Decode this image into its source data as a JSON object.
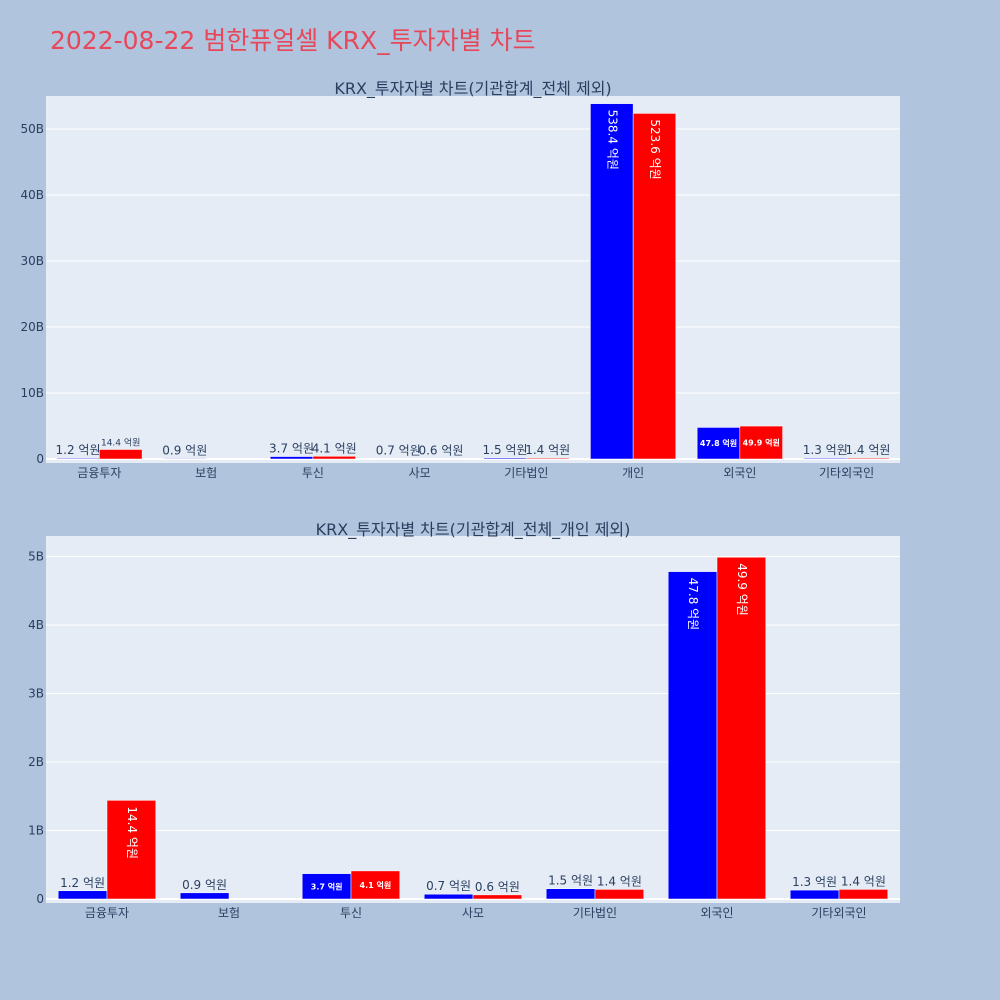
{
  "page": {
    "title": "2022-08-22 범한퓨얼셀 KRX_투자자별 차트",
    "title_color": "#e8475a",
    "background": "#b0c4de",
    "plot_background": "#e5ecf6",
    "series_colors": [
      "#0000ff",
      "#ff0000"
    ]
  },
  "chart_data": [
    {
      "type": "bar",
      "title": "KRX_투자자별 차트(기관합계_전체 제외)",
      "categories": [
        "금융투자",
        "보험",
        "투신",
        "사모",
        "기타법인",
        "개인",
        "외국인",
        "기타외국인"
      ],
      "series": [
        {
          "color": "#0000ff",
          "values": [
            0.12,
            0.09,
            0.37,
            0.07,
            0.15,
            53.84,
            4.78,
            0.13
          ],
          "labels": [
            "1.2 억원",
            "0.9 억원",
            "3.7 억원",
            "0.7 억원",
            "1.5 억원",
            "538.4 억원",
            "47.8 억원",
            "1.3 억원"
          ]
        },
        {
          "color": "#ff0000",
          "values": [
            1.44,
            0,
            0.41,
            0.06,
            0.14,
            52.36,
            4.99,
            0.14
          ],
          "labels": [
            "14.4 억원",
            "",
            "4.1 억원",
            "0.6 억원",
            "1.4 억원",
            "523.6 억원",
            "49.9 억원",
            "1.4 억원"
          ]
        }
      ],
      "yunit": "B",
      "ylim": [
        0,
        55
      ],
      "yticks": [
        0,
        10,
        20,
        30,
        40,
        50
      ],
      "ytick_labels": [
        "0",
        "10B",
        "20B",
        "30B",
        "40B",
        "50B"
      ],
      "grid": true,
      "legend": "none"
    },
    {
      "type": "bar",
      "title": "KRX_투자자별 차트(기관합계_전체_개인 제외)",
      "categories": [
        "금융투자",
        "보험",
        "투신",
        "사모",
        "기타법인",
        "외국인",
        "기타외국인"
      ],
      "series": [
        {
          "color": "#0000ff",
          "values": [
            0.12,
            0.09,
            0.37,
            0.07,
            0.15,
            4.78,
            0.13
          ],
          "labels": [
            "1.2 억원",
            "0.9 억원",
            "3.7 억원",
            "0.7 억원",
            "1.5 억원",
            "47.8 억원",
            "1.3 억원"
          ]
        },
        {
          "color": "#ff0000",
          "values": [
            1.44,
            0,
            0.41,
            0.06,
            0.14,
            4.99,
            0.14
          ],
          "labels": [
            "14.4 억원",
            "",
            "4.1 억원",
            "0.6 억원",
            "1.4 억원",
            "49.9 억원",
            "1.4 억원"
          ]
        }
      ],
      "yunit": "B",
      "ylim": [
        0,
        5.3
      ],
      "yticks": [
        0,
        1,
        2,
        3,
        4,
        5
      ],
      "ytick_labels": [
        "0",
        "1B",
        "2B",
        "3B",
        "4B",
        "5B"
      ],
      "grid": true,
      "legend": "none"
    }
  ]
}
